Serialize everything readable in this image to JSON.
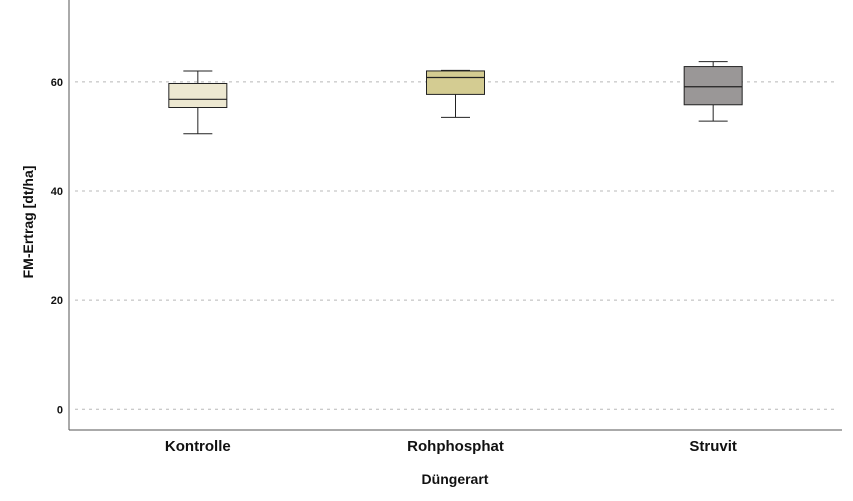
{
  "chart_data": {
    "type": "boxplot",
    "xlabel": "Düngerart",
    "ylabel": "FM-Ertrag [dt/ha]",
    "ylim": [
      -3.8,
      75
    ],
    "yticks": [
      0,
      20,
      40,
      60
    ],
    "grid": "horizontal-dashed",
    "categories": [
      "Kontrolle",
      "Rohphosphat",
      "Struvit"
    ],
    "boxes": [
      {
        "category": "Kontrolle",
        "min": 50.5,
        "q1": 55.3,
        "median": 56.8,
        "q3": 59.7,
        "max": 62.0,
        "color": "#ede8d1"
      },
      {
        "category": "Rohphosphat",
        "min": 53.5,
        "q1": 57.7,
        "median": 60.8,
        "q3": 62.0,
        "max": 62.1,
        "color": "#d4cc92"
      },
      {
        "category": "Struvit",
        "min": 52.8,
        "q1": 55.8,
        "median": 59.1,
        "q3": 62.8,
        "max": 63.7,
        "color": "#9a9797"
      }
    ]
  }
}
